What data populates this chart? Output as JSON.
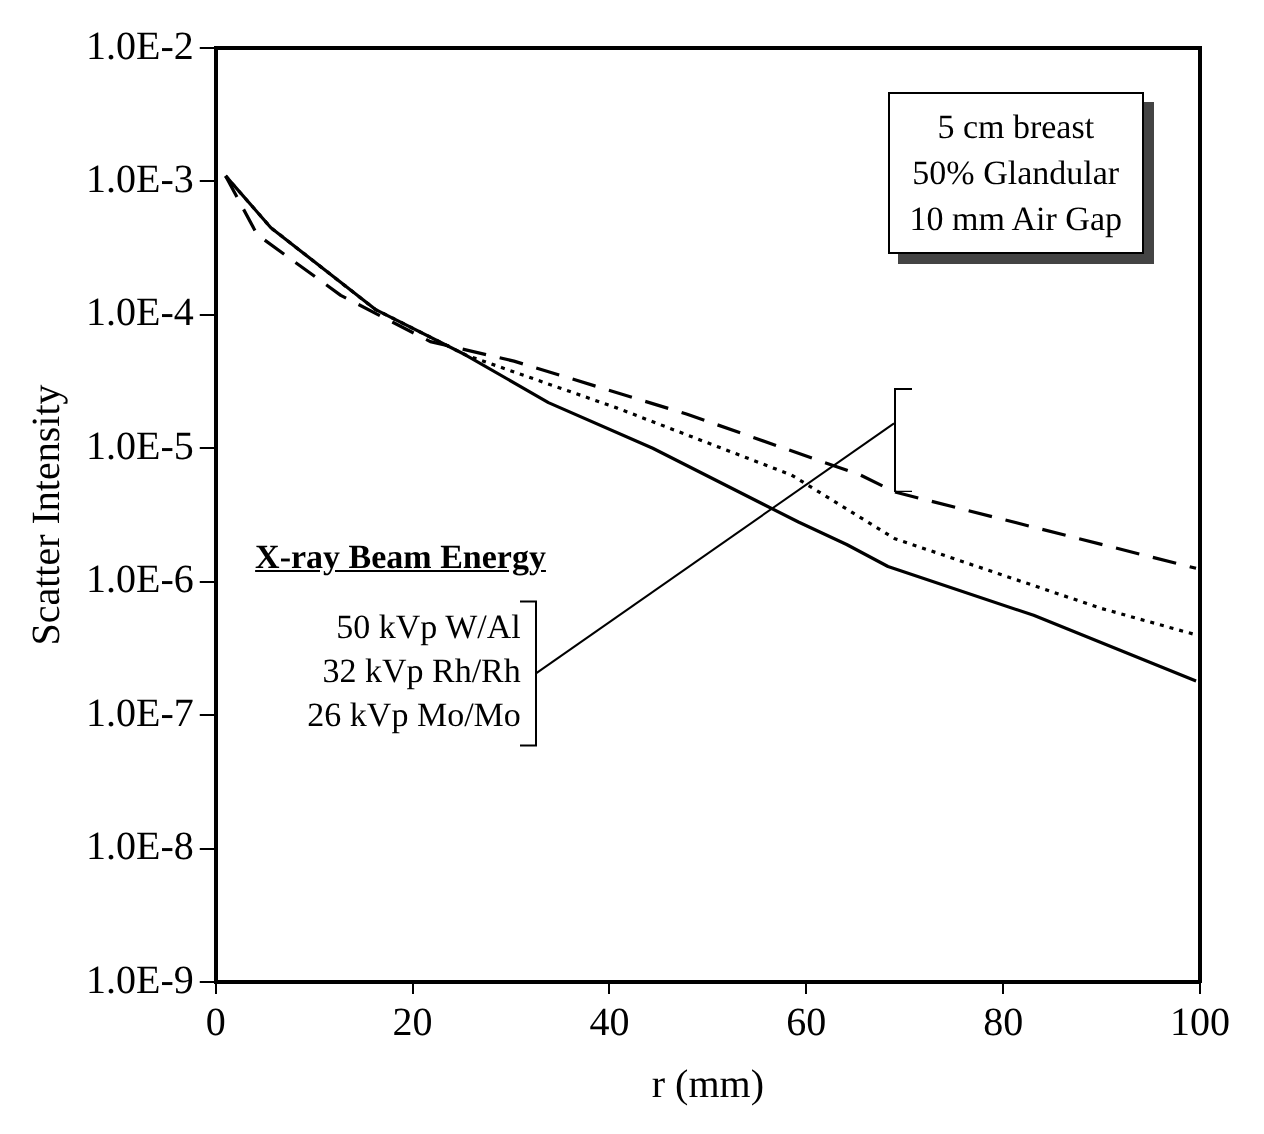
{
  "chart_data": {
    "type": "line",
    "xlabel": "r (mm)",
    "ylabel": "Scatter Intensity",
    "log": "y",
    "xlim": [
      0,
      100
    ],
    "xticks": [
      0,
      20,
      40,
      60,
      80,
      100
    ],
    "ylim": [
      1e-09,
      0.01
    ],
    "yticks": [
      {
        "value": 1e-09,
        "label": "1.0E-9"
      },
      {
        "value": 1e-08,
        "label": "1.0E-8"
      },
      {
        "value": 1e-07,
        "label": "1.0E-7"
      },
      {
        "value": 1e-06,
        "label": "1.0E-6"
      },
      {
        "value": 1e-05,
        "label": "1.0E-5"
      },
      {
        "value": 0.0001,
        "label": "1.0E-4"
      },
      {
        "value": 0.001,
        "label": "1.0E-3"
      },
      {
        "value": 0.01,
        "label": "1.0E-2"
      }
    ],
    "grid": false,
    "legend": "left",
    "legend_title": "X-ray Beam Energy",
    "marker": "none",
    "annotations": [
      "5 cm breast",
      "50% Glandular",
      "10 mm Air Gap"
    ],
    "series": [
      {
        "name": "50 kVp W/Al",
        "color": "#000000",
        "line_style": "dashed",
        "x": [
          1,
          4.2,
          12.7,
          21.8,
          30.3,
          47.9,
          65.5,
          69,
          99.6
        ],
        "values": [
          0.0011,
          0.0004,
          0.00014,
          6.3e-05,
          4.5e-05,
          1.8e-05,
          6.3e-06,
          4.7e-06,
          1.26e-06
        ]
      },
      {
        "name": "32 kVp Rh/Rh",
        "color": "#000000",
        "line_style": "dotted",
        "x": [
          1,
          5.6,
          16.2,
          25.4,
          40.8,
          58.5,
          69,
          90,
          99.6
        ],
        "values": [
          0.0011,
          0.00045,
          0.00011,
          5e-05,
          2e-05,
          6.3e-06,
          2.1e-06,
          6.3e-07,
          4e-07
        ]
      },
      {
        "name": "26 kVp Mo/Mo",
        "color": "#000000",
        "line_style": "solid",
        "x": [
          1,
          5.6,
          16.2,
          25.4,
          33.8,
          44.4,
          59.2,
          64.1,
          68.3,
          83.1,
          99.6
        ],
        "values": [
          0.0011,
          0.00045,
          0.00011,
          5e-05,
          2.2e-05,
          1e-05,
          2.8e-06,
          1.9e-06,
          1.3e-06,
          5.6e-07,
          1.8e-07
        ]
      }
    ]
  }
}
